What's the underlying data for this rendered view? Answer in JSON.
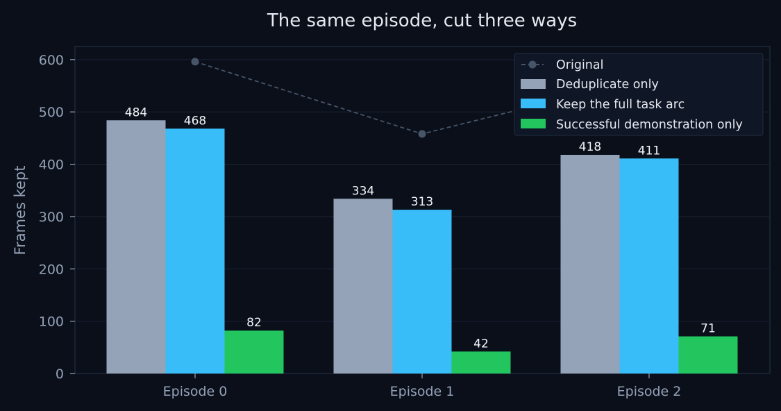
{
  "chart_data": {
    "type": "bar",
    "title": "The same episode, cut three ways",
    "ylabel": "Frames kept",
    "xlabel": "",
    "categories": [
      "Episode 0",
      "Episode 1",
      "Episode 2"
    ],
    "ylim": [
      0,
      625
    ],
    "yticks": [
      0,
      100,
      200,
      300,
      400,
      500,
      600
    ],
    "grid": true,
    "legend_position": "top-right",
    "line_series": {
      "name": "Original",
      "values": [
        596,
        458,
        566
      ],
      "color": "#475569",
      "style": "dashed-with-markers"
    },
    "series": [
      {
        "name": "Deduplicate only",
        "values": [
          484,
          334,
          418
        ],
        "color": "#94a3b8"
      },
      {
        "name": "Keep the full task arc",
        "values": [
          468,
          313,
          411
        ],
        "color": "#38bdf8"
      },
      {
        "name": "Successful demonstration only",
        "values": [
          82,
          42,
          71
        ],
        "color": "#22c55e"
      }
    ]
  }
}
